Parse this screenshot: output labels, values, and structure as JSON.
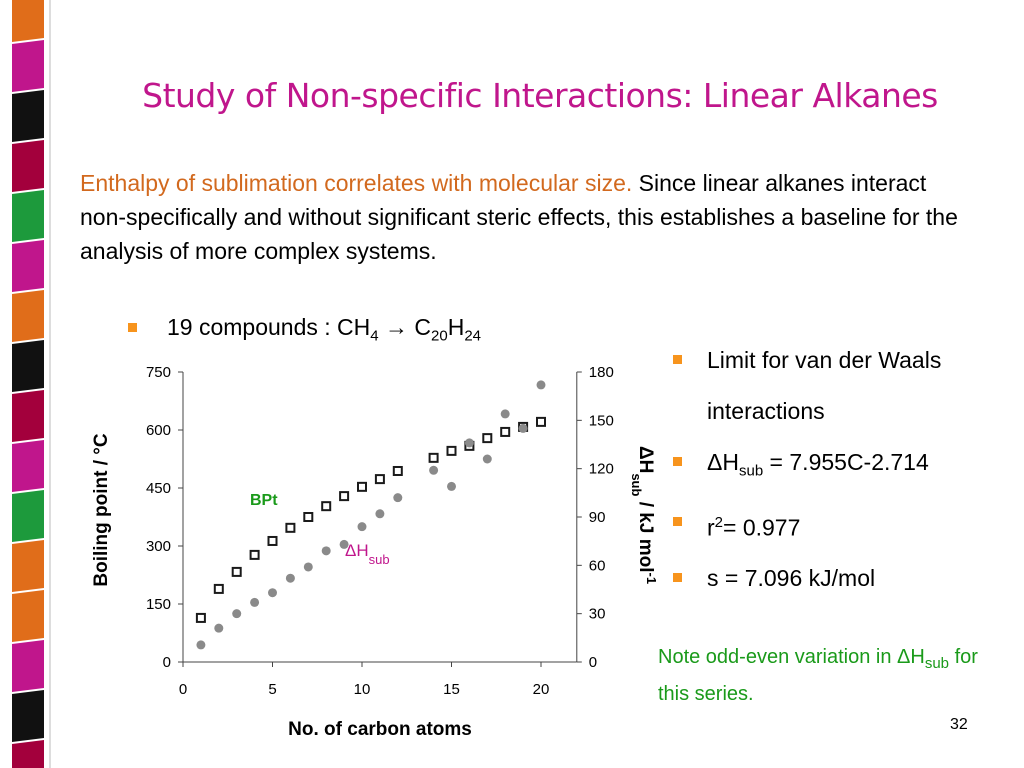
{
  "title": "Study of Non-specific Interactions: Linear Alkanes",
  "intro": {
    "highlight": "Enthalpy of sublimation correlates with molecular size.",
    "text": "Since linear alkanes interact non-specifically and without significant steric effects, this establishes a baseline for the analysis of more complex systems."
  },
  "bullet": [
    "19 compounds : CH",
    "4",
    " → C",
    "20",
    "H",
    "24"
  ],
  "notes": [
    [
      "Limit for van der Waals interactions"
    ],
    [
      "ΔH",
      "sub",
      " = 7.955C-2.714"
    ],
    [
      "r",
      "2",
      "= 0.977"
    ],
    [
      "s = 7.096 kJ/mol"
    ]
  ],
  "footnote": [
    "Note odd-even variation in ΔH",
    "sub",
    " for this series."
  ],
  "slide_number": "32",
  "chart_data": {
    "type": "scatter",
    "xlabel": "No. of carbon atoms",
    "ylabel": "Boiling point / °C",
    "y2label": [
      "ΔH",
      "sub",
      " / kJ mol",
      "-1"
    ],
    "x": [
      1,
      2,
      3,
      4,
      5,
      6,
      7,
      8,
      9,
      10,
      11,
      12,
      14,
      15,
      16,
      17,
      18,
      19,
      20
    ],
    "xlim": [
      0,
      22
    ],
    "xticks": [
      0,
      5,
      10,
      15,
      20
    ],
    "ylim": [
      0,
      750
    ],
    "yticks": [
      0,
      150,
      300,
      450,
      600,
      750
    ],
    "y2lim": [
      0,
      180
    ],
    "y2ticks": [
      0,
      30,
      60,
      90,
      120,
      150,
      180
    ],
    "series": [
      {
        "name": "BPt",
        "color": "#1a1a1a",
        "label_color": "#1a9a1a",
        "marker": "square",
        "values": [
          114,
          189,
          233,
          277,
          313,
          347,
          375,
          403,
          429,
          453,
          473,
          494,
          528,
          546,
          559,
          579,
          595,
          608,
          621
        ]
      },
      {
        "name": "ΔH",
        "name_subscript": "sub",
        "color": "#8a8a8a",
        "label_color": "#c0168c",
        "marker": "circle",
        "axis": "y2",
        "values": [
          10.6,
          21,
          30,
          37,
          43,
          52,
          59,
          69,
          73,
          84,
          92,
          102,
          119,
          109,
          136,
          126,
          154,
          145,
          172
        ]
      }
    ]
  }
}
